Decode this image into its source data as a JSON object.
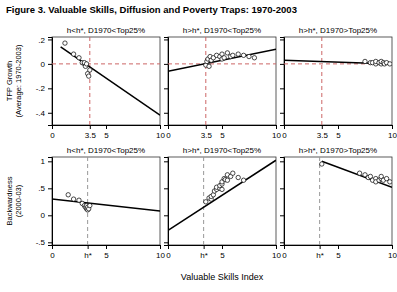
{
  "chart_data": {
    "type": "scatter",
    "title": "Figure 3. Valuable Skills, Diffusion and Poverty Traps: 1970-2003",
    "xlabel": "Valuable Skills Index",
    "grid": false,
    "panels": [
      {
        "title": "h<h*, D1970<Top25%",
        "ylabel": "TFP Growth\n(Average: 1970-2003)",
        "tick_labels": true,
        "xlim": [
          0,
          10
        ],
        "xticks": [
          0,
          3.5,
          5,
          10
        ],
        "ylim": [
          -0.5,
          0.22
        ],
        "yticks": [
          {
            "value": -0.4,
            "label": "-.4"
          },
          {
            "value": -0.2,
            "label": "-.2"
          },
          0,
          {
            "value": 0.2,
            "label": ".2"
          }
        ],
        "vline": {
          "value": 3.5,
          "color": "#cc6666",
          "line_style": "dashed"
        },
        "hline": {
          "value": 0,
          "color": "#cc6666",
          "line_style": "dashed"
        },
        "series": [
          {
            "type": "scatter",
            "marker": "circle",
            "color": "white",
            "x": [
              1.2,
              2.0,
              2.5,
              2.8,
              3.0,
              3.0,
              3.1,
              3.2,
              3.3,
              3.4,
              3.5
            ],
            "values": [
              0.17,
              0.08,
              0.05,
              0.01,
              0.0,
              0.01,
              -0.02,
              0.0,
              -0.08,
              -0.1,
              -0.05
            ]
          },
          {
            "type": "line",
            "line_style": "solid",
            "color": "black",
            "x": [
              0.8,
              10.0
            ],
            "values": [
              0.14,
              -0.42
            ]
          }
        ]
      },
      {
        "title": "h>h*, D1970<Top25%",
        "tick_labels": "x",
        "xlim": [
          0,
          10
        ],
        "xticks": [
          0,
          3.5,
          5,
          10
        ],
        "ylim": [
          -0.5,
          0.22
        ],
        "yticks": [
          -0.4,
          -0.2,
          0,
          0.2
        ],
        "vline": {
          "value": 3.5,
          "color": "#cc6666",
          "line_style": "dashed"
        },
        "hline": {
          "value": 0,
          "color": "#cc6666",
          "line_style": "dashed"
        },
        "series": [
          {
            "type": "scatter",
            "marker": "circle",
            "color": "white",
            "x": [
              3.5,
              3.6,
              3.7,
              3.8,
              3.9,
              4.0,
              4.2,
              4.5,
              4.8,
              5.0,
              5.0,
              5.2,
              5.5,
              5.8,
              6.0,
              6.5,
              7.0,
              7.5,
              8.0
            ],
            "values": [
              -0.01,
              0.02,
              0.04,
              -0.02,
              0.06,
              0.03,
              0.05,
              0.07,
              0.06,
              0.04,
              0.08,
              0.05,
              0.09,
              0.06,
              0.07,
              0.08,
              0.07,
              0.06,
              0.05
            ]
          },
          {
            "type": "line",
            "line_style": "solid",
            "color": "black",
            "x": [
              0.0,
              10.0
            ],
            "values": [
              -0.06,
              0.12
            ]
          }
        ]
      },
      {
        "title": "h>h*, D1970>Top25%",
        "tick_labels": "x",
        "xlim": [
          0,
          10
        ],
        "xticks": [
          0,
          3.5,
          5,
          10
        ],
        "ylim": [
          -0.5,
          0.22
        ],
        "yticks": [
          -0.4,
          -0.2,
          0,
          0.2
        ],
        "vline": {
          "value": 3.5,
          "color": "#cc6666",
          "line_style": "dashed"
        },
        "hline": {
          "value": 0,
          "color": "#cc6666",
          "line_style": "dashed"
        },
        "series": [
          {
            "type": "scatter",
            "marker": "circle",
            "color": "white",
            "x": [
              7.5,
              8.0,
              8.2,
              8.5,
              8.5,
              8.8,
              9.0,
              9.0,
              9.2,
              9.3,
              9.5,
              9.8
            ],
            "values": [
              0.02,
              0.01,
              0.01,
              0.0,
              0.02,
              0.01,
              0.0,
              0.02,
              0.01,
              0.0,
              0.01,
              0.0
            ]
          },
          {
            "type": "line",
            "line_style": "solid",
            "color": "black",
            "x": [
              0.0,
              10.0
            ],
            "values": [
              0.03,
              0.0
            ]
          }
        ]
      },
      {
        "title": "h<h*, D1970<Top25%",
        "ylabel": "Backwardness\n(2000-03)",
        "tick_labels": true,
        "xlim": [
          0,
          10
        ],
        "xticks": [
          0,
          {
            "value": 3.3,
            "label": "h*"
          },
          5,
          10
        ],
        "ylim": [
          -0.55,
          1.08
        ],
        "yticks": [
          {
            "value": -0.5,
            "label": "-.5"
          },
          0,
          {
            "value": 0.5,
            "label": ".5"
          },
          1
        ],
        "vline": {
          "value": 3.3,
          "color": "#999999",
          "line_style": "dashed"
        },
        "series": [
          {
            "type": "scatter",
            "marker": "circle",
            "color": "white",
            "x": [
              1.5,
              2.0,
              2.5,
              2.8,
              3.0,
              3.1,
              3.2,
              3.2,
              3.3,
              3.3,
              3.4,
              3.5
            ],
            "values": [
              0.38,
              0.3,
              0.28,
              0.22,
              0.18,
              0.15,
              0.12,
              0.18,
              0.1,
              0.15,
              0.12,
              0.18
            ]
          },
          {
            "type": "line",
            "line_style": "solid",
            "color": "black",
            "x": [
              0.0,
              10.0
            ],
            "values": [
              0.3,
              0.08
            ]
          }
        ]
      },
      {
        "title": "h>h*, D1970<Top25%",
        "tick_labels": "x",
        "xlim": [
          0,
          10
        ],
        "xticks": [
          0,
          {
            "value": 3.3,
            "label": "h*"
          },
          5,
          10
        ],
        "ylim": [
          -0.55,
          1.08
        ],
        "yticks": [
          -0.5,
          0,
          0.5,
          1
        ],
        "vline": {
          "value": 3.3,
          "color": "#999999",
          "line_style": "dashed"
        },
        "series": [
          {
            "type": "scatter",
            "marker": "circle",
            "color": "white",
            "x": [
              3.5,
              3.8,
              4.0,
              4.0,
              4.2,
              4.3,
              4.5,
              4.5,
              4.8,
              4.8,
              5.0,
              5.0,
              5.0,
              5.2,
              5.3,
              5.5,
              5.5,
              5.8,
              6.0,
              6.5,
              7.0
            ],
            "values": [
              0.25,
              0.32,
              0.3,
              0.35,
              0.38,
              0.45,
              0.48,
              0.52,
              0.5,
              0.55,
              0.48,
              0.58,
              0.62,
              0.68,
              0.66,
              0.65,
              0.75,
              0.72,
              0.78,
              0.7,
              0.65
            ]
          },
          {
            "type": "line",
            "line_style": "solid",
            "color": "black",
            "x": [
              0.0,
              10.0
            ],
            "values": [
              -0.28,
              1.02
            ]
          }
        ]
      },
      {
        "title": "h>h*, D1970>Top25%",
        "tick_labels": "x",
        "xlim": [
          0,
          10
        ],
        "xticks": [
          0,
          {
            "value": 3.3,
            "label": "h*"
          },
          5,
          10
        ],
        "ylim": [
          -0.55,
          1.08
        ],
        "yticks": [
          -0.5,
          0,
          0.5,
          1
        ],
        "vline": {
          "value": 3.3,
          "color": "#999999",
          "line_style": "dashed"
        },
        "series": [
          {
            "type": "scatter",
            "marker": "circle",
            "color": "white",
            "x": [
              3.5,
              7.0,
              7.5,
              7.8,
              8.0,
              8.2,
              8.5,
              8.5,
              8.8,
              9.0,
              9.0,
              9.2,
              9.5,
              9.8
            ],
            "values": [
              0.95,
              0.78,
              0.75,
              0.7,
              0.72,
              0.65,
              0.68,
              0.62,
              0.65,
              0.68,
              0.72,
              0.65,
              0.68,
              0.62
            ]
          },
          {
            "type": "line",
            "line_style": "solid",
            "color": "black",
            "x": [
              3.5,
              10.0
            ],
            "values": [
              1.0,
              0.52
            ]
          }
        ]
      }
    ]
  }
}
